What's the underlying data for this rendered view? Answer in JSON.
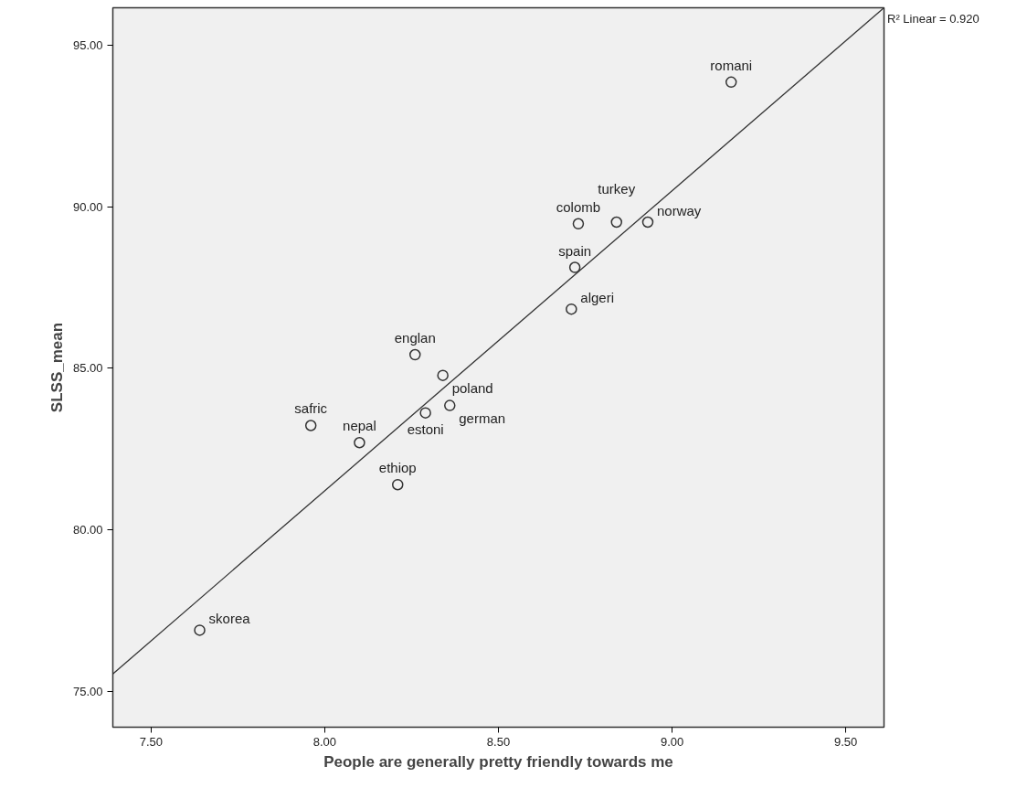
{
  "chart_data": {
    "type": "scatter",
    "xlabel": "People are generally pretty friendly towards me",
    "ylabel": "SLSS_mean",
    "xlim": [
      7.39,
      9.61
    ],
    "ylim": [
      73.9,
      96.15
    ],
    "xticks": [
      {
        "value": 7.5,
        "label": "7.50"
      },
      {
        "value": 8.0,
        "label": "8.00"
      },
      {
        "value": 8.5,
        "label": "8.50"
      },
      {
        "value": 9.0,
        "label": "9.00"
      },
      {
        "value": 9.5,
        "label": "9.50"
      }
    ],
    "yticks": [
      {
        "value": 75,
        "label": "75.00"
      },
      {
        "value": 80,
        "label": "80.00"
      },
      {
        "value": 85,
        "label": "85.00"
      },
      {
        "value": 90,
        "label": "90.00"
      },
      {
        "value": 95,
        "label": "95.00"
      }
    ],
    "grid": false,
    "marker": "circle",
    "series": [
      {
        "color": "#333333",
        "x": [
          9.17,
          8.73,
          8.84,
          8.93,
          8.72,
          8.71,
          8.26,
          8.34,
          8.29,
          8.36,
          7.96,
          8.1,
          8.21,
          7.64
        ],
        "values": [
          93.85,
          89.47,
          89.52,
          89.52,
          88.12,
          86.83,
          85.42,
          84.78,
          83.62,
          83.85,
          83.23,
          82.7,
          81.4,
          76.9
        ]
      },
      {
        "type": "line",
        "marker": "none",
        "color": "#333333",
        "x": [
          7.39,
          9.61
        ],
        "values": [
          75.55,
          96.15
        ]
      }
    ],
    "annotations": [
      {
        "text": "romani",
        "x": 9.17,
        "y": 93.85
      },
      {
        "text": "colomb",
        "x": 8.73,
        "y": 89.47
      },
      {
        "text": "turkey",
        "x": 8.84,
        "y": 89.52
      },
      {
        "text": "norway",
        "x": 8.93,
        "y": 89.52
      },
      {
        "text": "spain",
        "x": 8.72,
        "y": 88.12
      },
      {
        "text": "algeri",
        "x": 8.71,
        "y": 86.83
      },
      {
        "text": "englan",
        "x": 8.26,
        "y": 85.42
      },
      {
        "text": "poland",
        "x": 8.34,
        "y": 84.78
      },
      {
        "text": "estoni",
        "x": 8.29,
        "y": 83.62
      },
      {
        "text": "german",
        "x": 8.36,
        "y": 83.85
      },
      {
        "text": "safric",
        "x": 7.96,
        "y": 83.23
      },
      {
        "text": "nepal",
        "x": 8.1,
        "y": 82.7
      },
      {
        "text": "ethiop",
        "x": 8.21,
        "y": 81.4
      },
      {
        "text": "skorea",
        "x": 7.64,
        "y": 76.9
      },
      "R² Linear = 0.920"
    ]
  }
}
